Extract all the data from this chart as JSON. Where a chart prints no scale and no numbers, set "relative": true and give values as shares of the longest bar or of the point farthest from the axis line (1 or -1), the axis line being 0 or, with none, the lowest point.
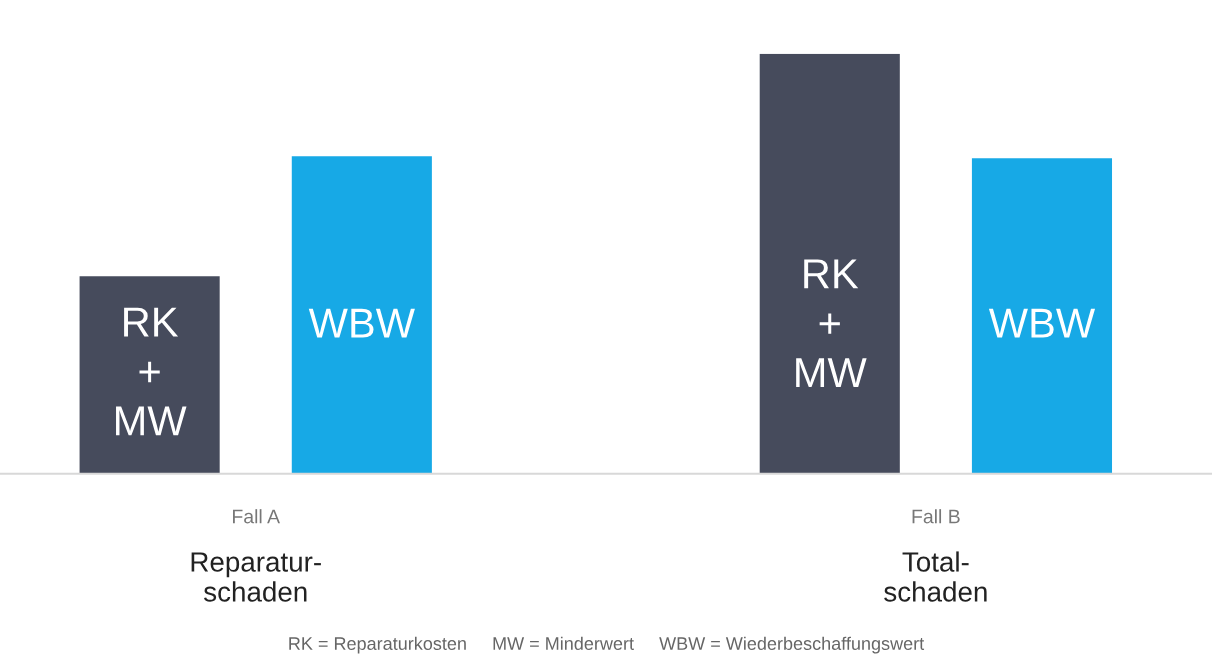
{
  "chart_data": {
    "type": "bar",
    "relative": true,
    "categories": [
      "Fall A\nReparatur-\nschaden",
      "Fall B\nTotal-\nschaden"
    ],
    "series": [
      {
        "name": "RK\n+\nMW",
        "color": "#464b5c",
        "values": [
          0.47,
          1
        ]
      },
      {
        "name": "WBW",
        "color": "#17a9e6",
        "values": [
          0.756,
          0.751
        ]
      }
    ],
    "annotations": [
      "RK = Reparaturkosten     MW = Minderwert     WBW = Wiederbeschaffungswert"
    ],
    "legend": false
  }
}
